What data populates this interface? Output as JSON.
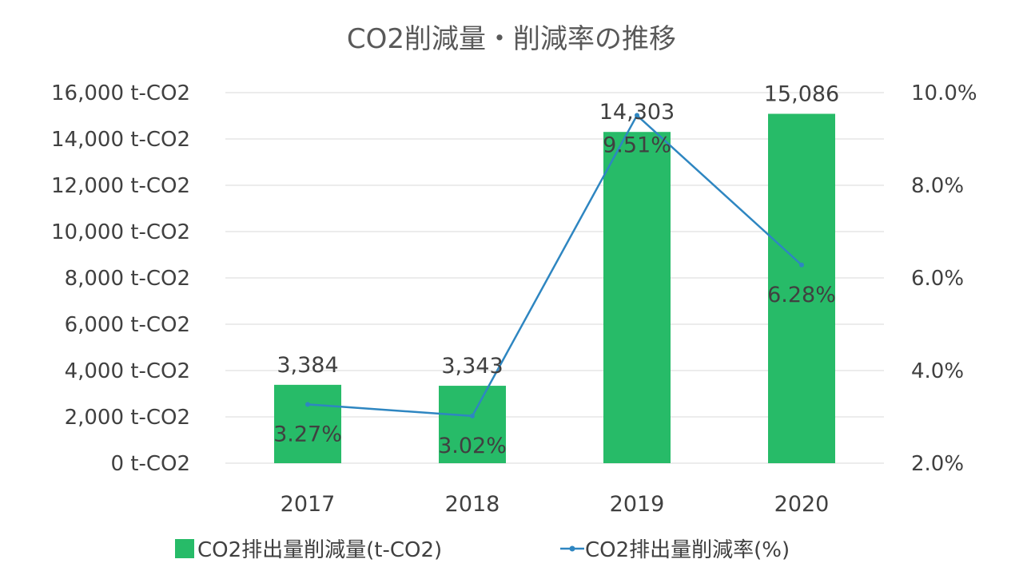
{
  "chart_data": {
    "type": "bar",
    "title": "CO2削減量・削減率の推移",
    "categories": [
      "2017",
      "2018",
      "2019",
      "2020"
    ],
    "series": [
      {
        "name": "CO2排出量削減量(t-CO2)",
        "type": "bar",
        "axis": "left",
        "values": [
          3384,
          3343,
          14303,
          15086
        ],
        "labels": [
          "3,384",
          "3,343",
          "14,303",
          "15,086"
        ],
        "color": "#27bb68"
      },
      {
        "name": "CO2排出量削減率(%)",
        "type": "line",
        "axis": "right",
        "values": [
          3.27,
          3.02,
          9.51,
          6.28
        ],
        "labels": [
          "3.27%",
          "3.02%",
          "9.51%",
          "6.28%"
        ],
        "color": "#2e86c1"
      }
    ],
    "y_left": {
      "lim": [
        0,
        16000
      ],
      "ticks": [
        "0 t-CO2",
        "2,000 t-CO2",
        "4,000 t-CO2",
        "6,000 t-CO2",
        "8,000 t-CO2",
        "10,000 t-CO2",
        "12,000 t-CO2",
        "14,000 t-CO2",
        "16,000 t-CO2"
      ]
    },
    "y_right": {
      "lim": [
        2.0,
        10.0
      ],
      "ticks": [
        "2.0%",
        "4.0%",
        "6.0%",
        "8.0%",
        "10.0%"
      ]
    },
    "grid": true,
    "legend_position": "bottom"
  }
}
